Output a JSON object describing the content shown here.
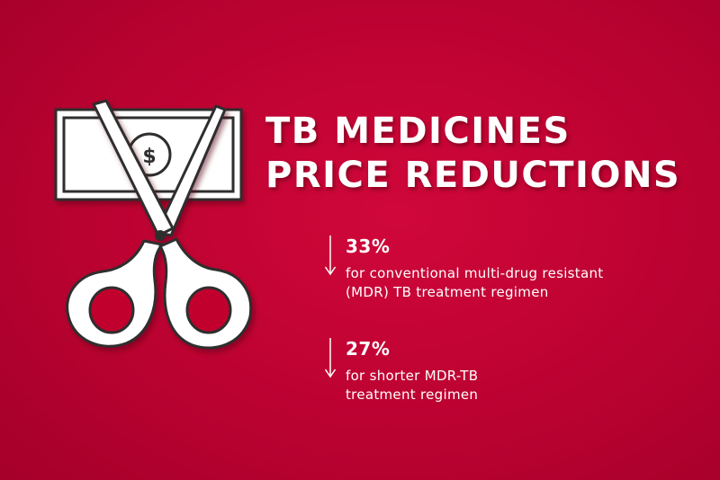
{
  "title": {
    "line1": "TB MEDICINES",
    "line2": "PRICE REDUCTIONS"
  },
  "illustration": {
    "icon": "scissors-cutting-dollar-bill-icon",
    "bill_symbol": "$"
  },
  "stats": [
    {
      "icon": "down-arrow-icon",
      "percent": "33%",
      "description_line1": "for conventional multi-drug resistant",
      "description_line2": "(MDR) TB treatment regimen"
    },
    {
      "icon": "down-arrow-icon",
      "percent": "27%",
      "description_line1": "for shorter MDR-TB",
      "description_line2": "treatment regimen"
    }
  ],
  "colors": {
    "background": "#c2032f",
    "foreground": "#ffffff",
    "outline": "#3a3a3a"
  }
}
